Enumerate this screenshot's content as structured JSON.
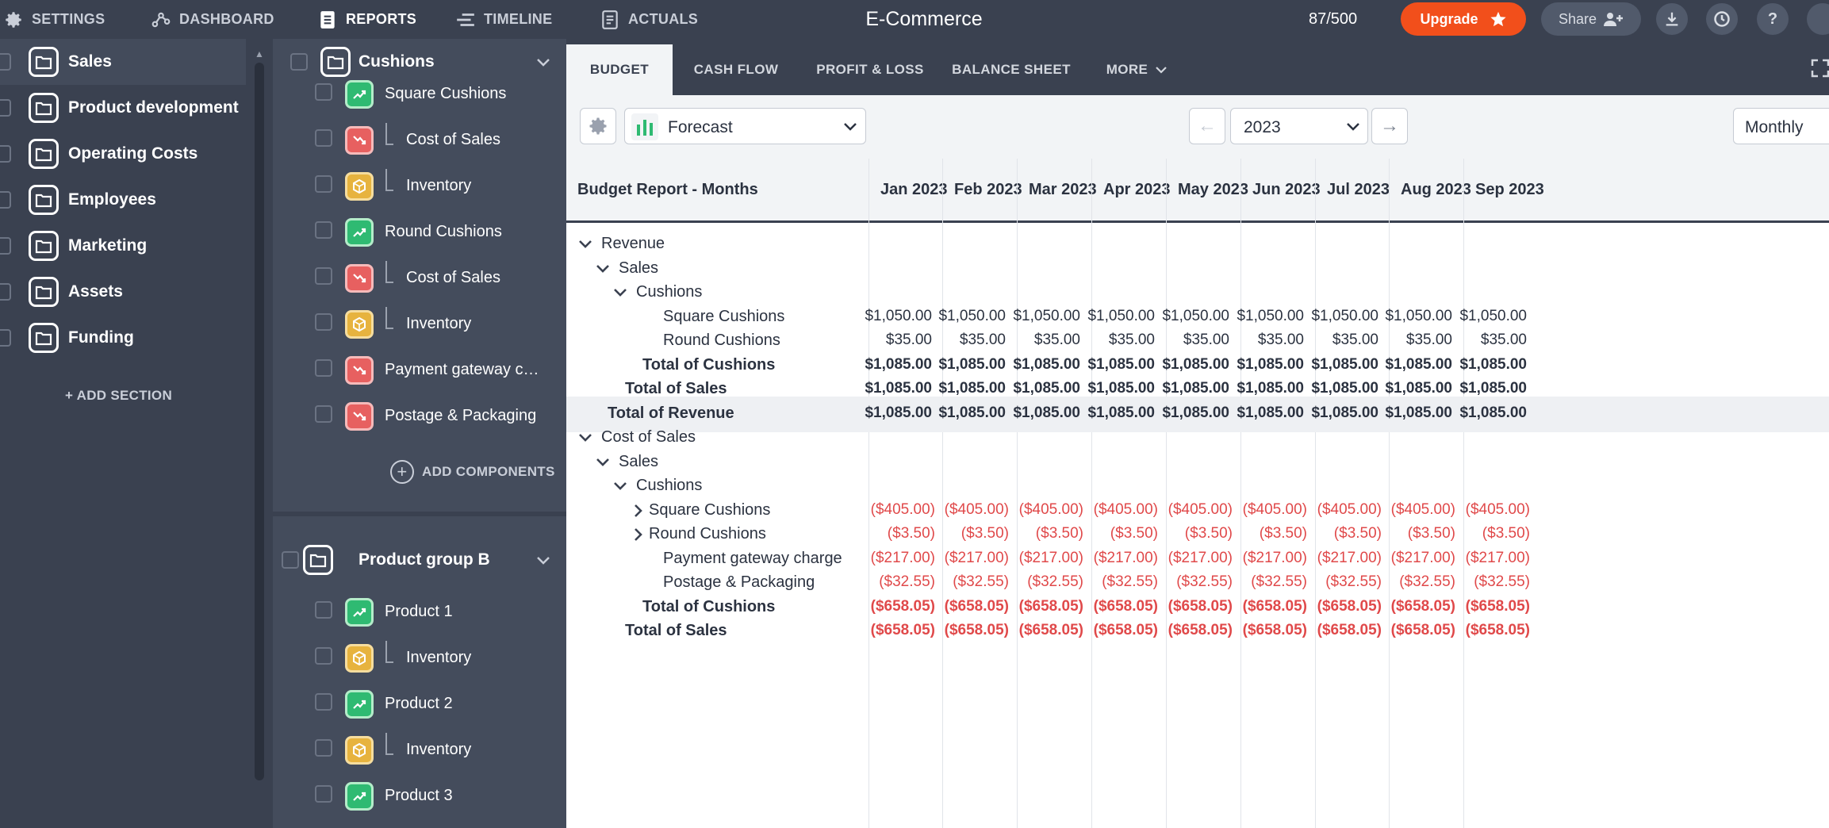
{
  "nav": {
    "settings": "SETTINGS",
    "dashboard": "DASHBOARD",
    "reports": "REPORTS",
    "timeline": "TIMELINE",
    "actuals": "ACTUALS",
    "app_title": "E-Commerce",
    "usage": "87/500",
    "upgrade": "Upgrade",
    "share": "Share",
    "help": "?"
  },
  "sidebar": {
    "items": [
      {
        "label": "Sales"
      },
      {
        "label": "Product development"
      },
      {
        "label": "Operating Costs"
      },
      {
        "label": "Employees"
      },
      {
        "label": "Marketing"
      },
      {
        "label": "Assets"
      },
      {
        "label": "Funding"
      }
    ],
    "add_section": "+ ADD SECTION"
  },
  "components": {
    "group1": {
      "title": "Cushions",
      "rows": [
        {
          "label": "Square Cushions",
          "type": "rev"
        },
        {
          "label": "Cost of Sales",
          "type": "cost",
          "child": true
        },
        {
          "label": "Inventory",
          "type": "inv",
          "child": true
        },
        {
          "label": "Round Cushions",
          "type": "rev"
        },
        {
          "label": "Cost of Sales",
          "type": "cost",
          "child": true
        },
        {
          "label": "Inventory",
          "type": "inv",
          "child": true
        },
        {
          "label": "Payment gateway c…",
          "type": "cost"
        },
        {
          "label": "Postage & Packaging",
          "type": "cost"
        }
      ],
      "add": "ADD COMPONENTS"
    },
    "group2": {
      "title": "Product group B",
      "rows": [
        {
          "label": "Product 1",
          "type": "rev"
        },
        {
          "label": "Inventory",
          "type": "inv",
          "child": true
        },
        {
          "label": "Product 2",
          "type": "rev"
        },
        {
          "label": "Inventory",
          "type": "inv",
          "child": true
        },
        {
          "label": "Product 3",
          "type": "rev"
        }
      ]
    }
  },
  "tabs": [
    "BUDGET",
    "CASH FLOW",
    "PROFIT & LOSS",
    "BALANCE SHEET",
    "MORE"
  ],
  "toolbar": {
    "view": "Forecast",
    "year": "2023",
    "period": "Monthly"
  },
  "report": {
    "title": "Budget Report - Months",
    "months": [
      "Jan 2023",
      "Feb 2023",
      "Mar 2023",
      "Apr 2023",
      "May 2023",
      "Jun 2023",
      "Jul 2023",
      "Aug 2023",
      "Sep 2023"
    ],
    "rows": [
      {
        "label": "Revenue",
        "indent": 0,
        "chev": "down",
        "bold": false,
        "values": []
      },
      {
        "label": "Sales",
        "indent": 1,
        "chev": "down",
        "bold": false,
        "values": []
      },
      {
        "label": "Cushions",
        "indent": 2,
        "chev": "down",
        "bold": false,
        "values": []
      },
      {
        "label": "Square Cushions",
        "indent": 3,
        "chev": "",
        "bold": false,
        "values": [
          "$1,050.00",
          "$1,050.00",
          "$1,050.00",
          "$1,050.00",
          "$1,050.00",
          "$1,050.00",
          "$1,050.00",
          "$1,050.00",
          "$1,050.00"
        ]
      },
      {
        "label": "Round Cushions",
        "indent": 3,
        "chev": "",
        "bold": false,
        "values": [
          "$35.00",
          "$35.00",
          "$35.00",
          "$35.00",
          "$35.00",
          "$35.00",
          "$35.00",
          "$35.00",
          "$35.00"
        ]
      },
      {
        "label": "Total of Cushions",
        "indent": 2.5,
        "chev": "",
        "bold": true,
        "values": [
          "$1,085.00",
          "$1,085.00",
          "$1,085.00",
          "$1,085.00",
          "$1,085.00",
          "$1,085.00",
          "$1,085.00",
          "$1,085.00",
          "$1,085.00"
        ]
      },
      {
        "label": "Total of Sales",
        "indent": 1.5,
        "chev": "",
        "bold": true,
        "values": [
          "$1,085.00",
          "$1,085.00",
          "$1,085.00",
          "$1,085.00",
          "$1,085.00",
          "$1,085.00",
          "$1,085.00",
          "$1,085.00",
          "$1,085.00"
        ]
      },
      {
        "label": "Total of Revenue",
        "indent": 0.5,
        "chev": "",
        "bold": true,
        "hl": true,
        "values": [
          "$1,085.00",
          "$1,085.00",
          "$1,085.00",
          "$1,085.00",
          "$1,085.00",
          "$1,085.00",
          "$1,085.00",
          "$1,085.00",
          "$1,085.00"
        ]
      },
      {
        "label": "Cost of Sales",
        "indent": 0,
        "chev": "down",
        "bold": false,
        "values": []
      },
      {
        "label": "Sales",
        "indent": 1,
        "chev": "down",
        "bold": false,
        "values": []
      },
      {
        "label": "Cushions",
        "indent": 2,
        "chev": "down",
        "bold": false,
        "values": []
      },
      {
        "label": "Square Cushions",
        "indent": 3,
        "chev": "right",
        "bold": false,
        "neg": true,
        "values": [
          "($405.00)",
          "($405.00)",
          "($405.00)",
          "($405.00)",
          "($405.00)",
          "($405.00)",
          "($405.00)",
          "($405.00)",
          "($405.00)"
        ]
      },
      {
        "label": "Round Cushions",
        "indent": 3,
        "chev": "right",
        "bold": false,
        "neg": true,
        "values": [
          "($3.50)",
          "($3.50)",
          "($3.50)",
          "($3.50)",
          "($3.50)",
          "($3.50)",
          "($3.50)",
          "($3.50)",
          "($3.50)"
        ]
      },
      {
        "label": "Payment gateway charge",
        "indent": 3,
        "chev": "",
        "bold": false,
        "neg": true,
        "values": [
          "($217.00)",
          "($217.00)",
          "($217.00)",
          "($217.00)",
          "($217.00)",
          "($217.00)",
          "($217.00)",
          "($217.00)",
          "($217.00)"
        ]
      },
      {
        "label": "Postage & Packaging",
        "indent": 3,
        "chev": "",
        "bold": false,
        "neg": true,
        "values": [
          "($32.55)",
          "($32.55)",
          "($32.55)",
          "($32.55)",
          "($32.55)",
          "($32.55)",
          "($32.55)",
          "($32.55)",
          "($32.55)"
        ]
      },
      {
        "label": "Total of Cushions",
        "indent": 2.5,
        "chev": "",
        "bold": true,
        "neg": true,
        "values": [
          "($658.05)",
          "($658.05)",
          "($658.05)",
          "($658.05)",
          "($658.05)",
          "($658.05)",
          "($658.05)",
          "($658.05)",
          "($658.05)"
        ]
      },
      {
        "label": "Total of Sales",
        "indent": 1.5,
        "chev": "",
        "bold": true,
        "neg": true,
        "values": [
          "($658.05)",
          "($658.05)",
          "($658.05)",
          "($658.05)",
          "($658.05)",
          "($658.05)",
          "($658.05)",
          "($658.05)",
          "($658.05)"
        ]
      }
    ]
  },
  "colors": {
    "accent": "#f24f1b",
    "nav_bg": "#3a4150",
    "panel_bg": "#444c5c",
    "negative": "#e0494a",
    "revenue_icon": "#2fba72",
    "cost_icon": "#e76060",
    "inventory_icon": "#e7b33e"
  },
  "icons": [
    "gear-icon",
    "dashboard-icon",
    "reports-icon",
    "timeline-icon",
    "actuals-icon",
    "star-icon",
    "add-user-icon",
    "download-icon",
    "history-icon",
    "help-icon",
    "folder-icon",
    "trend-up-icon",
    "trend-down-icon",
    "box-icon",
    "chevron-down-icon",
    "chevron-right-icon",
    "expand-icon",
    "bar-chart-icon",
    "arrow-left-icon",
    "arrow-right-icon"
  ]
}
